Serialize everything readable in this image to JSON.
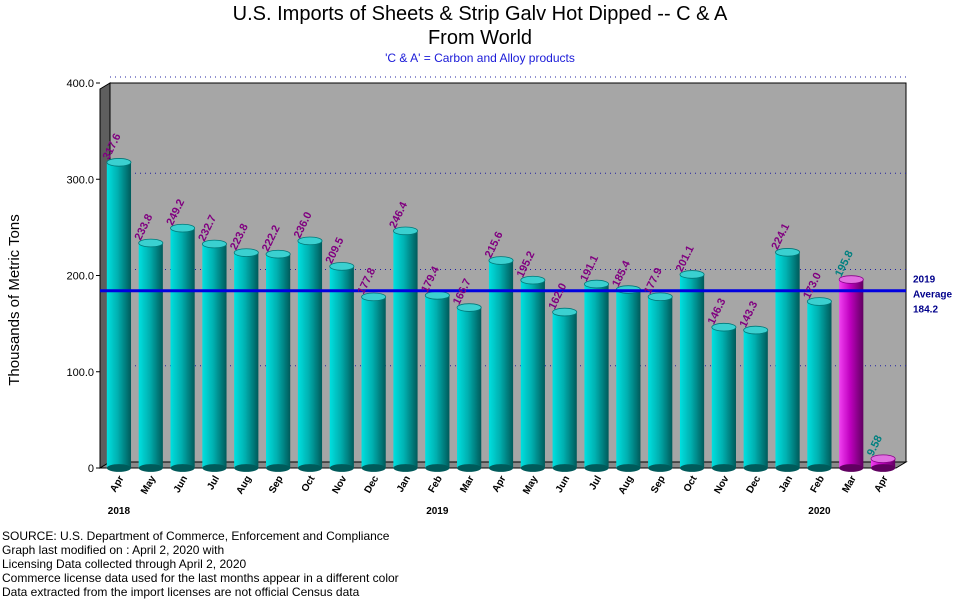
{
  "chart_data": {
    "type": "bar",
    "title": "U.S. Imports of Sheets & Strip Galv Hot Dipped -- C & A",
    "title_line2": "From World",
    "subtitle": "'C & A' = Carbon and Alloy products",
    "ylabel": "Thousands of Metric Tons",
    "xlabel": "",
    "ylim": [
      0,
      400
    ],
    "yticks": [
      "0",
      "100.0",
      "200.0",
      "300.0",
      "400.0"
    ],
    "grid": true,
    "categories": [
      "Apr",
      "May",
      "Jun",
      "Jul",
      "Aug",
      "Sep",
      "Oct",
      "Nov",
      "Dec",
      "Jan",
      "Feb",
      "Mar",
      "Apr",
      "May",
      "Jun",
      "Jul",
      "Aug",
      "Sep",
      "Oct",
      "Nov",
      "Dec",
      "Jan",
      "Feb",
      "Mar",
      "Apr"
    ],
    "year_labels": [
      {
        "index": 0,
        "text": "2018"
      },
      {
        "index": 10,
        "text": "2019"
      },
      {
        "index": 22,
        "text": "2020"
      }
    ],
    "values": [
      317.6,
      233.8,
      249.2,
      232.7,
      223.8,
      222.2,
      236.0,
      209.5,
      177.8,
      246.4,
      179.4,
      166.7,
      215.6,
      195.2,
      162.0,
      191.1,
      185.4,
      177.9,
      201.1,
      146.3,
      143.3,
      224.1,
      173.0,
      195.8,
      9.58
    ],
    "value_labels": [
      "317.6",
      "233.8",
      "249.2",
      "232.7",
      "223.8",
      "222.2",
      "236.0",
      "209.5",
      "177.8",
      "246.4",
      "179.4",
      "166.7",
      "215.6",
      "195.2",
      "162.0",
      "191.1",
      "185.4",
      "177.9",
      "201.1",
      "146.3",
      "143.3",
      "224.1",
      "173.0",
      "195.8",
      "9.58"
    ],
    "license_data_from_index": 23,
    "average": {
      "value": 184.2,
      "label_lines": [
        "2019",
        "Average",
        "184.2"
      ]
    },
    "colors": {
      "bar_census": "#00b4b4",
      "bar_license": "#c800c8",
      "label_census": "#800080",
      "label_license": "#008080",
      "average_line": "#0000e0",
      "plot_bg": "#a6a6a6",
      "grid": "#2020a0"
    }
  },
  "footer": [
    "SOURCE: U.S. Department of Commerce, Enforcement and Compliance",
    "Graph last modified on : April 2, 2020      with",
    "Licensing Data collected through April 2, 2020",
    "Commerce license data used for the last months appear in a different color",
    "Data extracted from the import licenses are not official Census data"
  ]
}
